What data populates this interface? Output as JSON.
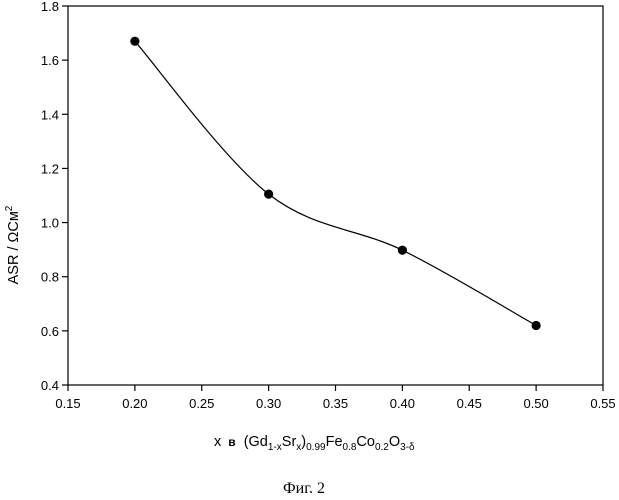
{
  "chart_data": {
    "type": "line",
    "x": [
      0.2,
      0.3,
      0.4,
      0.5
    ],
    "series": [
      {
        "values": [
          1.67,
          1.105,
          0.898,
          0.62
        ]
      }
    ],
    "xlim": [
      0.15,
      0.55
    ],
    "ylim": [
      0.4,
      1.8
    ],
    "xticks": [
      "0.15",
      "0.20",
      "0.25",
      "0.30",
      "0.35",
      "0.40",
      "0.45",
      "0.50",
      "0.55"
    ],
    "yticks": [
      "0.4",
      "0.6",
      "0.8",
      "1.0",
      "1.2",
      "1.4",
      "1.6",
      "1.8"
    ],
    "ylabel": "ASR / ΩСм²",
    "xlabel": "x в (Gd1-xSrx)0.99Fe0.8Co0.2O3-δ",
    "xlabel_parts": {
      "x": "x",
      "v": "в",
      "open": "(Gd",
      "sub1": "1-x",
      "sr": "Sr",
      "sub2": "x",
      "close": ")",
      "sub3": "0.99",
      "fe": "Fe",
      "sub4": "0.8",
      "co": "Co",
      "sub5": "0.2",
      "o": "O",
      "sub6": "3-δ"
    },
    "ylabel_parts": {
      "main": "ASR / ΩСм",
      "sup": "2"
    },
    "caption": "Фиг. 2",
    "grid": false,
    "line_style": "smooth curve with filled circle markers",
    "colors": {
      "line": "#000000",
      "markers": "#000000",
      "background": "#ffffff"
    }
  }
}
